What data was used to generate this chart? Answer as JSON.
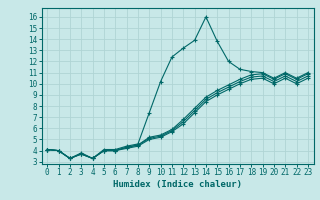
{
  "title": "",
  "xlabel": "Humidex (Indice chaleur)",
  "bg_color": "#c8e8e8",
  "grid_color": "#b0d4d4",
  "line_color": "#006868",
  "xlim": [
    -0.5,
    23.5
  ],
  "ylim": [
    2.8,
    16.8
  ],
  "xticks": [
    0,
    1,
    2,
    3,
    4,
    5,
    6,
    7,
    8,
    9,
    10,
    11,
    12,
    13,
    14,
    15,
    16,
    17,
    18,
    19,
    20,
    21,
    22,
    23
  ],
  "yticks": [
    3,
    4,
    5,
    6,
    7,
    8,
    9,
    10,
    11,
    12,
    13,
    14,
    15,
    16
  ],
  "line1": [
    4.1,
    4.0,
    3.3,
    3.8,
    3.3,
    4.1,
    4.1,
    4.4,
    4.6,
    7.4,
    10.2,
    12.4,
    13.2,
    13.9,
    16.0,
    13.8,
    12.0,
    11.3,
    11.1,
    11.0,
    10.5,
    11.0,
    10.5,
    11.0
  ],
  "line2": [
    4.1,
    4.0,
    3.3,
    3.7,
    3.3,
    4.0,
    4.0,
    4.3,
    4.5,
    5.2,
    5.4,
    5.9,
    6.8,
    7.8,
    8.8,
    9.4,
    9.9,
    10.4,
    10.8,
    10.9,
    10.4,
    10.9,
    10.4,
    10.9
  ],
  "line3": [
    4.1,
    4.0,
    3.3,
    3.7,
    3.3,
    4.0,
    4.0,
    4.3,
    4.5,
    5.1,
    5.3,
    5.8,
    6.6,
    7.6,
    8.6,
    9.2,
    9.7,
    10.2,
    10.6,
    10.7,
    10.2,
    10.7,
    10.2,
    10.7
  ],
  "line4": [
    4.1,
    4.0,
    3.3,
    3.7,
    3.3,
    4.0,
    4.0,
    4.2,
    4.4,
    5.0,
    5.2,
    5.7,
    6.4,
    7.4,
    8.4,
    9.0,
    9.5,
    10.0,
    10.4,
    10.5,
    10.0,
    10.5,
    10.0,
    10.5
  ],
  "tick_fontsize": 5.5,
  "xlabel_fontsize": 6.5
}
